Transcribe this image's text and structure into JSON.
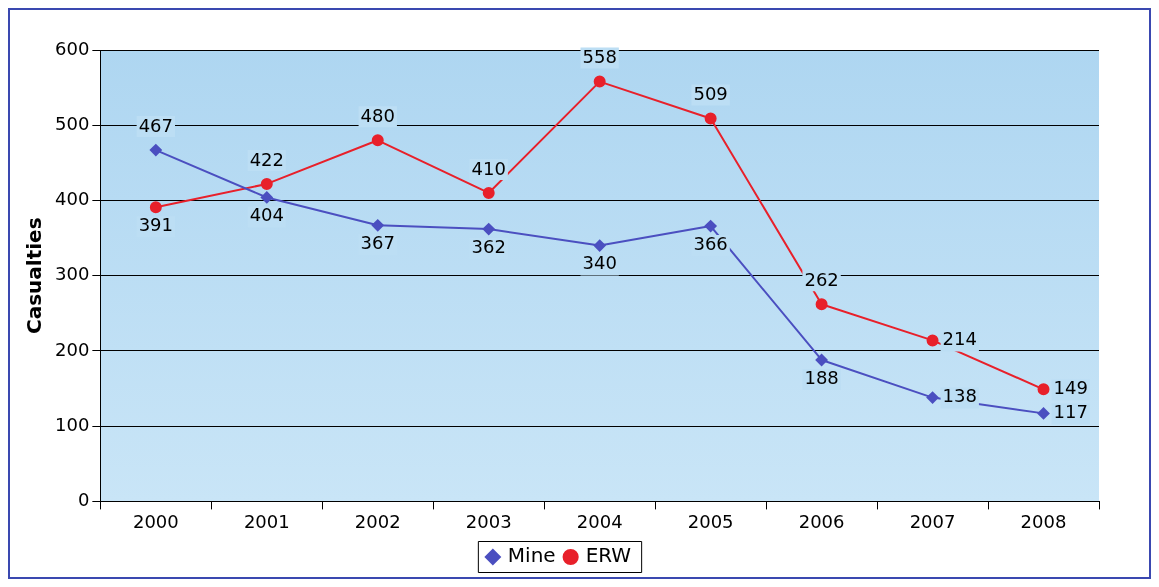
{
  "chart_data": {
    "type": "line",
    "ylabel": "Casualties",
    "categories": [
      "2000",
      "2001",
      "2002",
      "2003",
      "2004",
      "2005",
      "2006",
      "2007",
      "2008"
    ],
    "series": [
      {
        "name": "Mine",
        "color": "#4b4fc0",
        "marker": "diamond",
        "values": [
          467,
          404,
          367,
          362,
          340,
          366,
          188,
          138,
          117
        ]
      },
      {
        "name": "ERW",
        "color": "#e8202a",
        "marker": "circle",
        "values": [
          391,
          422,
          480,
          410,
          558,
          509,
          262,
          214,
          149
        ]
      }
    ],
    "ylim": [
      0,
      600
    ],
    "yticks": [
      0,
      100,
      200,
      300,
      400,
      500,
      600
    ],
    "grid": "y",
    "legend": "bottom",
    "data_labels": true
  }
}
